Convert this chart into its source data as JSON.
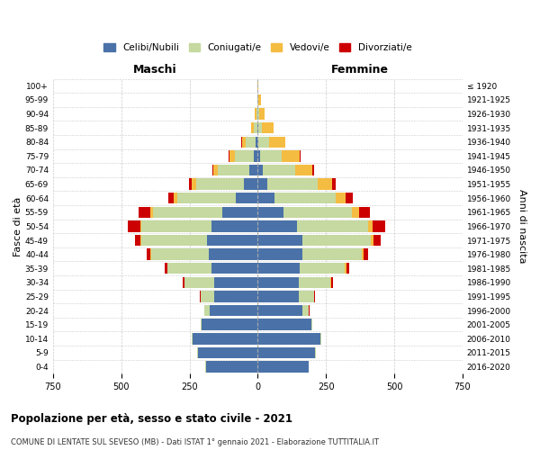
{
  "age_groups": [
    "0-4",
    "5-9",
    "10-14",
    "15-19",
    "20-24",
    "25-29",
    "30-34",
    "35-39",
    "40-44",
    "45-49",
    "50-54",
    "55-59",
    "60-64",
    "65-69",
    "70-74",
    "75-79",
    "80-84",
    "85-89",
    "90-94",
    "95-99",
    "100+"
  ],
  "birth_years_top_to_bottom": [
    "≤ 1920",
    "1921-1925",
    "1926-1930",
    "1931-1935",
    "1936-1940",
    "1941-1945",
    "1946-1950",
    "1951-1955",
    "1956-1960",
    "1961-1965",
    "1966-1970",
    "1971-1975",
    "1976-1980",
    "1981-1985",
    "1986-1990",
    "1991-1995",
    "1996-2000",
    "2001-2005",
    "2006-2010",
    "2011-2015",
    "2016-2020"
  ],
  "males": {
    "celibi": [
      190,
      220,
      240,
      205,
      175,
      160,
      160,
      170,
      180,
      185,
      170,
      130,
      80,
      50,
      30,
      15,
      8,
      3,
      1,
      0,
      0
    ],
    "coniugati": [
      3,
      3,
      3,
      5,
      20,
      50,
      110,
      160,
      210,
      240,
      255,
      255,
      215,
      175,
      115,
      70,
      35,
      12,
      4,
      1,
      0
    ],
    "vedovi": [
      0,
      0,
      0,
      0,
      0,
      0,
      0,
      1,
      2,
      4,
      6,
      8,
      12,
      16,
      18,
      20,
      16,
      10,
      5,
      2,
      1
    ],
    "divorziati": [
      0,
      0,
      0,
      0,
      1,
      3,
      6,
      10,
      15,
      22,
      45,
      45,
      22,
      10,
      4,
      2,
      1,
      0,
      0,
      0,
      0
    ]
  },
  "females": {
    "nubili": [
      185,
      210,
      230,
      195,
      165,
      150,
      150,
      155,
      165,
      165,
      145,
      95,
      60,
      35,
      18,
      8,
      3,
      1,
      0,
      0,
      0
    ],
    "coniugate": [
      3,
      3,
      3,
      5,
      22,
      55,
      115,
      165,
      215,
      248,
      260,
      250,
      225,
      185,
      120,
      78,
      40,
      14,
      4,
      1,
      0
    ],
    "vedove": [
      0,
      0,
      0,
      0,
      1,
      2,
      3,
      4,
      6,
      10,
      16,
      25,
      38,
      52,
      62,
      68,
      58,
      42,
      22,
      10,
      3
    ],
    "divorziate": [
      0,
      0,
      0,
      0,
      1,
      4,
      8,
      12,
      18,
      28,
      45,
      42,
      25,
      12,
      5,
      2,
      1,
      0,
      0,
      0,
      0
    ]
  },
  "color_celibi": "#4a72a8",
  "color_coniugati": "#c5d9a0",
  "color_vedovi": "#f5bc42",
  "color_divorziati": "#cc0000",
  "xlim": 750,
  "title": "Popolazione per età, sesso e stato civile - 2021",
  "subtitle": "COMUNE DI LENTATE SUL SEVESO (MB) - Dati ISTAT 1° gennaio 2021 - Elaborazione TUTTITALIA.IT",
  "ylabel": "Fasce di età",
  "ylabel_right": "Anni di nascita",
  "label_maschi": "Maschi",
  "label_femmine": "Femmine",
  "legend_celibi": "Celibi/Nubili",
  "legend_coniugati": "Coniugati/e",
  "legend_vedovi": "Vedovi/e",
  "legend_divorziati": "Divorziati/e",
  "bg_color": "#ffffff",
  "grid_color": "#cccccc"
}
